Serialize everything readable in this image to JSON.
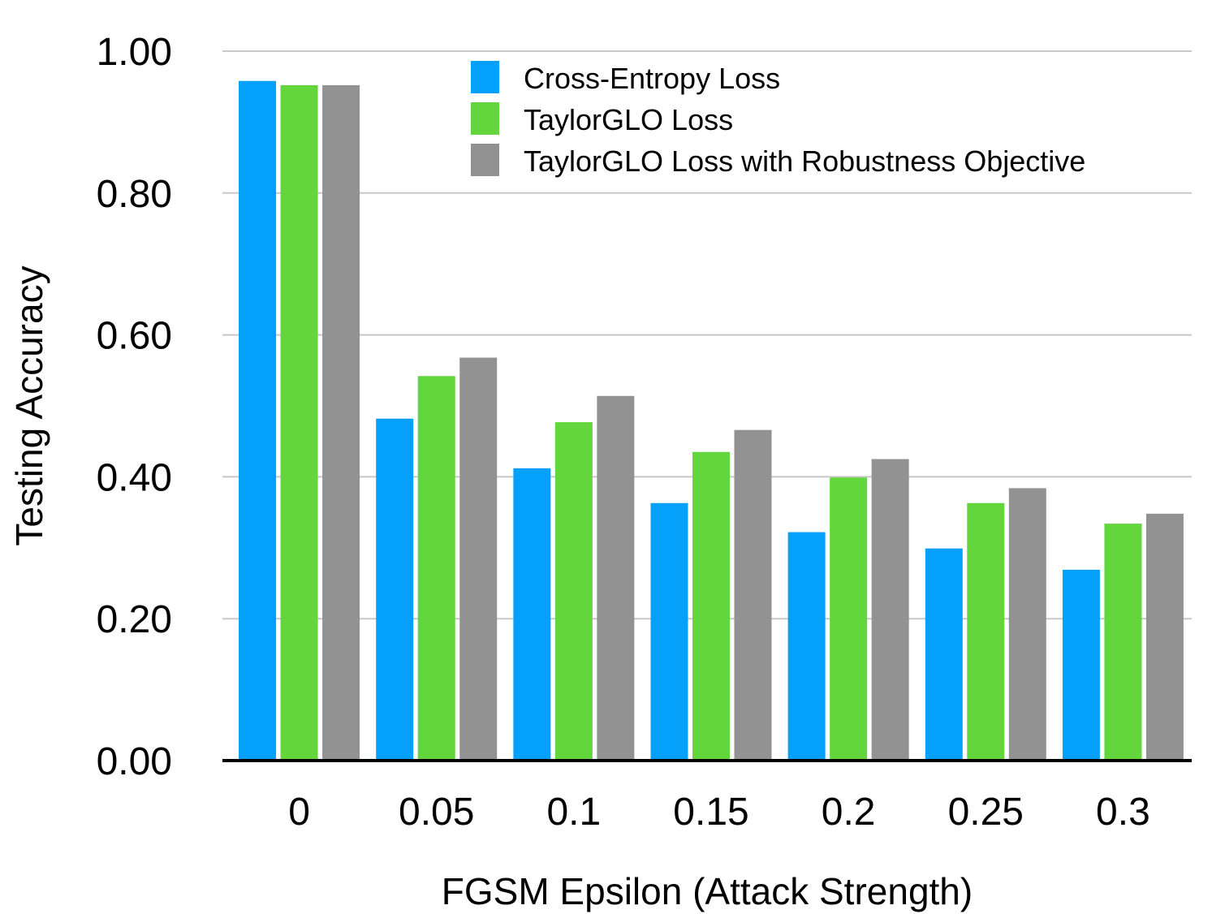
{
  "chart_data": {
    "type": "bar",
    "xlabel": "FGSM Epsilon (Attack Strength)",
    "ylabel": "Testing Accuracy",
    "ylim": [
      0,
      1
    ],
    "yticks": [
      "0.00",
      "0.20",
      "0.40",
      "0.60",
      "0.80",
      "1.00"
    ],
    "ytick_values": [
      0,
      0.2,
      0.4,
      0.6,
      0.8,
      1.0
    ],
    "grid": true,
    "legend_position": "top-right",
    "categories": [
      "0",
      "0.05",
      "0.1",
      "0.15",
      "0.2",
      "0.25",
      "0.3"
    ],
    "series": [
      {
        "name": "Cross-Entropy Loss",
        "color": "#05a0fa",
        "values": [
          0.958,
          0.482,
          0.412,
          0.363,
          0.322,
          0.299,
          0.269
        ]
      },
      {
        "name": "TaylorGLO Loss",
        "color": "#62d63c",
        "values": [
          0.952,
          0.542,
          0.477,
          0.435,
          0.399,
          0.363,
          0.334
        ]
      },
      {
        "name": "TaylorGLO Loss with Robustness Objective",
        "color": "#929292",
        "values": [
          0.952,
          0.568,
          0.514,
          0.466,
          0.425,
          0.384,
          0.348
        ]
      }
    ]
  }
}
